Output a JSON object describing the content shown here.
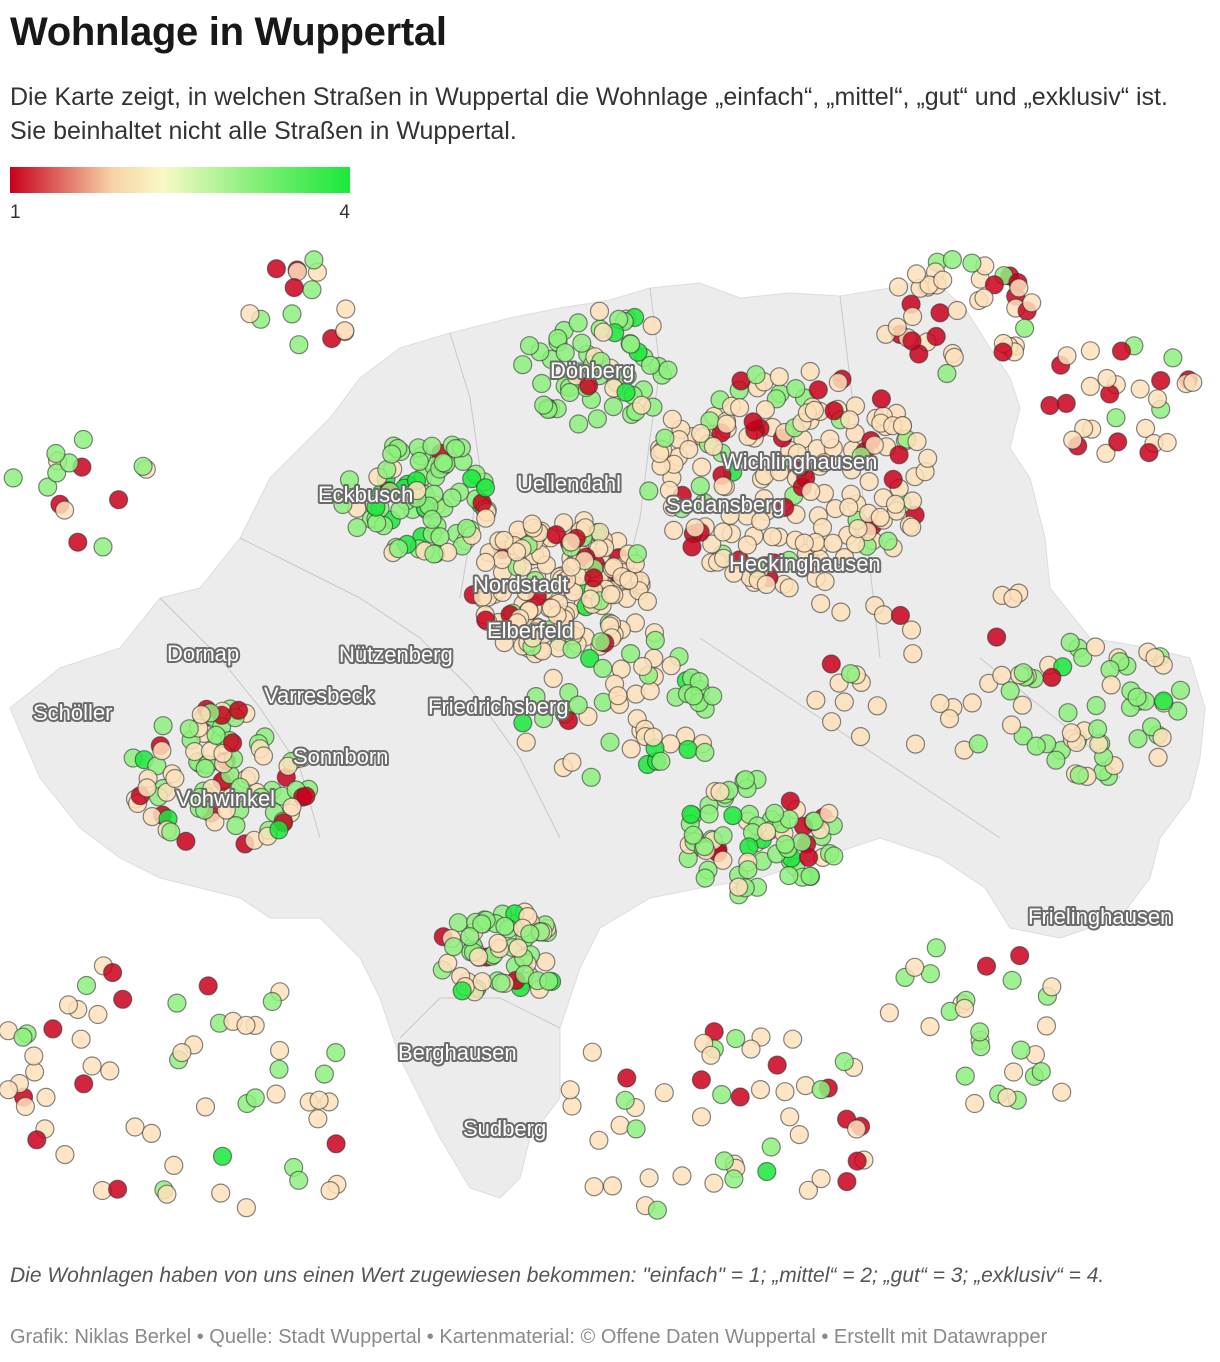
{
  "title": "Wohnlage in Wuppertal",
  "intro": "Die Karte zeigt, in welchen Straßen in Wuppertal die Wohnlage „einfach“, „mittel“, „gut“ und „exklusiv“ ist. Sie beinhaltet nicht alle Straßen in Wuppertal.",
  "legend": {
    "min_label": "1",
    "max_label": "4",
    "colors": [
      "#c9001c",
      "#f7d2a6",
      "#f9f9c6",
      "#8ef07e",
      "#19e83a"
    ]
  },
  "colors": {
    "einfach": "#c9001c",
    "mittel": "#fde1bb",
    "gut": "#8ef07e",
    "exklusiv": "#19e83a",
    "city_area": "#ececec"
  },
  "place_labels": [
    "Dönberg",
    "Uellendahl",
    "Wichlinghausen",
    "Sedansberg",
    "Eckbusch",
    "Nordstadt",
    "Heckinghausen",
    "Elberfeld",
    "Dornap",
    "Nützenberg",
    "Varresbeck",
    "Friedrichsberg",
    "Schöller",
    "Sonnborn",
    "Vohwinkel",
    "Frielinghausen",
    "Berghausen",
    "Sudberg"
  ],
  "notes": "Die Wohnlagen haben von uns einen Wert zugewiesen bekommen: \"einfach\" = 1; „mittel“ = 2; „gut“ = 3; „exklusiv“ = 4.",
  "byline": "Grafik: Niklas Berkel • Quelle: Stadt Wuppertal • Kartenmaterial: © Offene Daten Wuppertal • Erstellt mit Datawrapper"
}
